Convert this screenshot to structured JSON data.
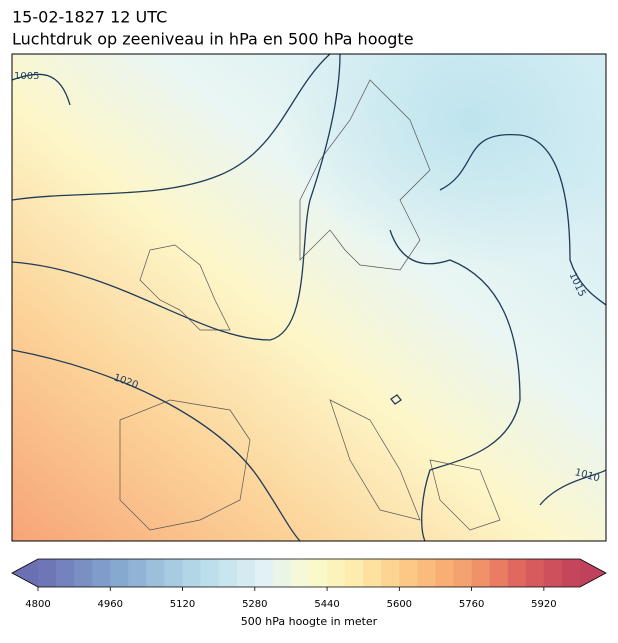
{
  "header": {
    "title": "15-02-1827 12 UTC",
    "subtitle": "Luchtdruk op zeeniveau in hPa en 500 hPa hoogte"
  },
  "map": {
    "contour_labels": [
      "1005",
      "1015",
      "1020",
      "1010"
    ]
  },
  "colorbar": {
    "range": [
      4800,
      6000
    ],
    "ticks": [
      4800,
      4960,
      5120,
      5280,
      5440,
      5600,
      5760,
      5920
    ],
    "label": "500 hPa hoogte in meter"
  }
}
